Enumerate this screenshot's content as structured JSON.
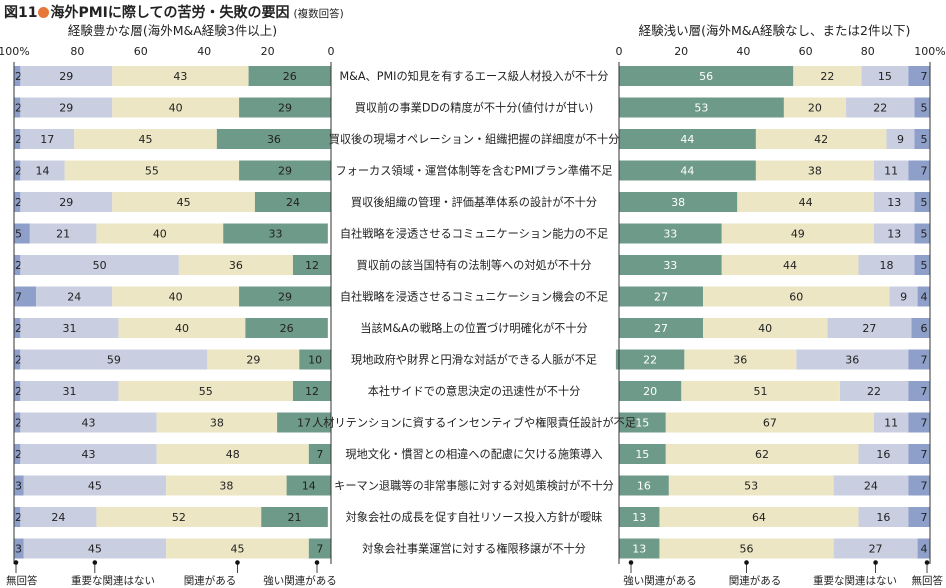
{
  "figure": {
    "number": "図11",
    "title": "海外PMIに際しての苦労・失敗の要因",
    "subtitle": "(複数回答)",
    "accent_color": "#e8773a"
  },
  "colors": {
    "strong": "#6e9a8a",
    "related": "#ece6c4",
    "not_important": "#c9cee0",
    "no_answer": "#8e9fc9",
    "bg_strip": "#ededed"
  },
  "chart_data": [
    {
      "type": "bar",
      "orientation": "horizontal-stacked",
      "axis_direction": "reversed",
      "title": "経験豊かな層(海外M&A経験3件以上)",
      "xlim": [
        100,
        0
      ],
      "ticks": [
        "100%",
        "80",
        "60",
        "40",
        "20",
        "0"
      ],
      "legend": [
        "無回答",
        "重要な関連はない",
        "関連がある",
        "強い関連がある"
      ],
      "stack_order_from_outer_edge": [
        "無回答",
        "重要な関連はない",
        "関連がある",
        "強い関連がある"
      ],
      "series": [
        {
          "name": "強い関連がある",
          "values": [
            26,
            29,
            36,
            29,
            24,
            33,
            12,
            29,
            26,
            10,
            12,
            17,
            7,
            14,
            21,
            7
          ]
        },
        {
          "name": "関連がある",
          "values": [
            43,
            40,
            45,
            55,
            45,
            40,
            36,
            40,
            40,
            29,
            55,
            38,
            48,
            38,
            52,
            45
          ]
        },
        {
          "name": "重要な関連はない",
          "values": [
            29,
            29,
            17,
            14,
            29,
            21,
            50,
            24,
            31,
            59,
            31,
            43,
            43,
            45,
            24,
            45
          ]
        },
        {
          "name": "無回答",
          "values": [
            2,
            2,
            2,
            2,
            2,
            5,
            2,
            7,
            2,
            2,
            2,
            2,
            2,
            3,
            2,
            3
          ]
        }
      ]
    },
    {
      "type": "bar",
      "orientation": "horizontal-stacked",
      "title": "経験浅い層(海外M&A経験なし、または2件以下)",
      "xlim": [
        0,
        100
      ],
      "ticks": [
        "0",
        "20",
        "40",
        "60",
        "80",
        "100%"
      ],
      "legend": [
        "強い関連がある",
        "関連がある",
        "重要な関連はない",
        "無回答"
      ],
      "stack_order_from_outer_edge": [
        "無回答",
        "重要な関連はない",
        "関連がある",
        "強い関連がある"
      ],
      "series": [
        {
          "name": "強い関連がある",
          "values": [
            56,
            53,
            44,
            44,
            38,
            33,
            33,
            27,
            27,
            22,
            20,
            15,
            15,
            16,
            13,
            13
          ]
        },
        {
          "name": "関連がある",
          "values": [
            22,
            20,
            42,
            38,
            44,
            49,
            44,
            60,
            40,
            36,
            51,
            67,
            62,
            53,
            64,
            56
          ]
        },
        {
          "name": "重要な関連はない",
          "values": [
            15,
            22,
            9,
            11,
            13,
            13,
            18,
            9,
            27,
            36,
            22,
            11,
            16,
            24,
            16,
            27
          ]
        },
        {
          "name": "無回答",
          "values": [
            7,
            5,
            5,
            7,
            5,
            5,
            5,
            4,
            6,
            7,
            7,
            7,
            7,
            7,
            7,
            4
          ]
        }
      ]
    }
  ],
  "categories": [
    "M&A、PMIの知見を有するエース級人材投入が不十分",
    "買収前の事業DDの精度が不十分(値付けが甘い)",
    "買収後の現場オペレーション・組織把握の詳細度が不十分",
    "フォーカス領域・運営体制等を含むPMIプラン準備不足",
    "買収後組織の管理・評価基準体系の設計が不十分",
    "自社戦略を浸透させるコミュニケーション能力の不足",
    "買収前の該当国特有の法制等への対処が不十分",
    "自社戦略を浸透させるコミュニケーション機会の不足",
    "当該M&Aの戦略上の位置づけ明確化が不十分",
    "現地政府や財界と円滑な対話ができる人脈が不足",
    "本社サイドでの意思決定の迅速性が不十分",
    "人材リテンションに資するインセンティブや権限責任設計が不足",
    "現地文化・慣習との相違への配慮に欠ける施策導入",
    "キーマン退職等の非常事態に対する対処策検討が不十分",
    "対象会社の成長を促す自社リソース投入方針が曖昧",
    "対象会社事業運営に対する権限移譲が不十分"
  ]
}
